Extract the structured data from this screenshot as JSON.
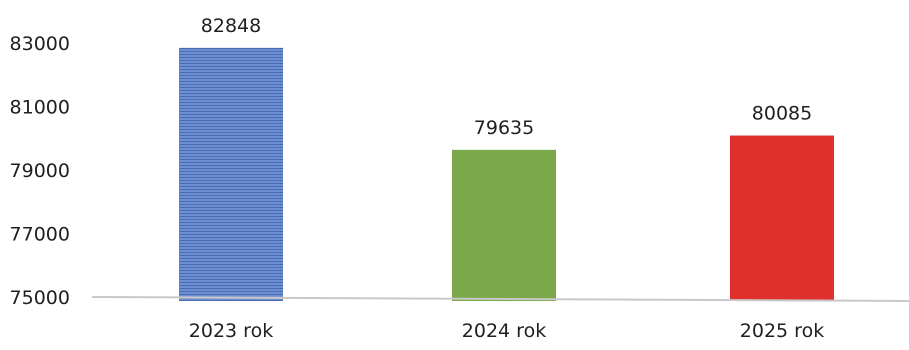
{
  "chart_data": {
    "type": "bar",
    "categories": [
      "2023 rok",
      "2024 rok",
      "2025 rok"
    ],
    "values": [
      82848,
      79635,
      80085
    ],
    "data_labels": [
      "82848",
      "79635",
      "80085"
    ],
    "title": "",
    "xlabel": "",
    "ylabel": "",
    "ylim": [
      75000,
      83000
    ],
    "yticks": [
      75000,
      77000,
      79000,
      81000,
      83000
    ],
    "ytick_labels": [
      "75000",
      "77000",
      "79000",
      "81000",
      "83000"
    ],
    "grid": false,
    "legend": "none",
    "bar_colors": [
      "#5b7fc6",
      "#7aa84a",
      "#e0302d"
    ],
    "axis_color": "#c8c8c8"
  }
}
